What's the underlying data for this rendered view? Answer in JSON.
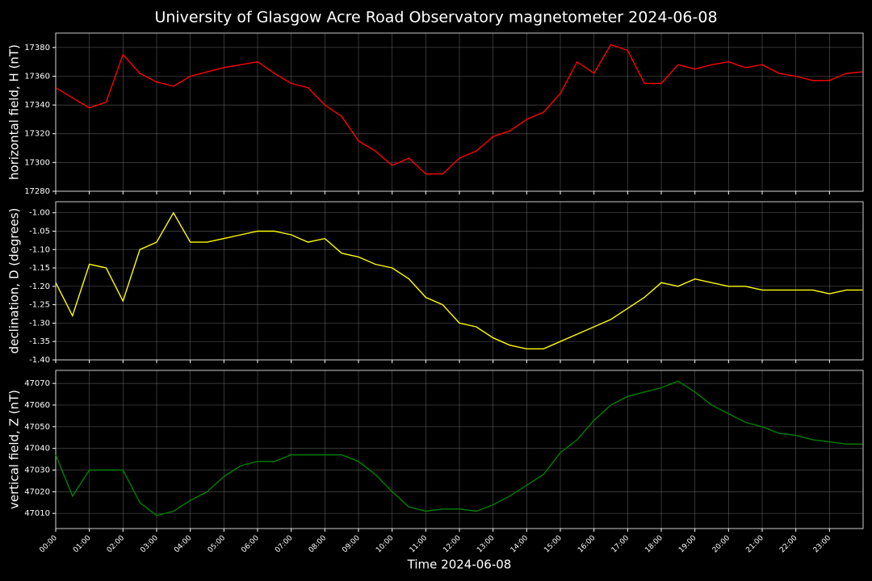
{
  "chart_data": [
    {
      "type": "line",
      "title": "University of Glasgow Acre Road Observatory magnetometer 2024-06-08",
      "ylabel": "horizontal field, H (nT)",
      "color": "#ff0000",
      "grid": true,
      "x": [
        "00:00",
        "00:30",
        "01:00",
        "01:30",
        "02:00",
        "02:30",
        "03:00",
        "03:30",
        "04:00",
        "04:30",
        "05:00",
        "05:30",
        "06:00",
        "06:30",
        "07:00",
        "07:30",
        "08:00",
        "08:30",
        "09:00",
        "09:30",
        "10:00",
        "10:30",
        "11:00",
        "11:30",
        "12:00",
        "12:30",
        "13:00",
        "13:30",
        "14:00",
        "14:30",
        "15:00",
        "15:30",
        "16:00",
        "16:30",
        "17:00",
        "17:30",
        "18:00",
        "18:30",
        "19:00",
        "19:30",
        "20:00",
        "20:30",
        "21:00",
        "21:30",
        "22:00",
        "22:30",
        "23:00",
        "23:30",
        "23:59"
      ],
      "values": [
        17352,
        17345,
        17338,
        17342,
        17375,
        17362,
        17356,
        17353,
        17360,
        17363,
        17366,
        17368,
        17370,
        17362,
        17355,
        17352,
        17340,
        17332,
        17315,
        17308,
        17298,
        17303,
        17292,
        17292,
        17303,
        17308,
        17318,
        17322,
        17330,
        17335,
        17348,
        17370,
        17362,
        17382,
        17378,
        17355,
        17355,
        17368,
        17365,
        17368,
        17370,
        17366,
        17368,
        17362,
        17360,
        17357,
        17357,
        17362,
        17363
      ],
      "xlim": [
        "00:00",
        "24:00"
      ],
      "ylim": [
        17280,
        17390
      ],
      "yticks": [
        17280,
        17300,
        17320,
        17340,
        17360,
        17380
      ]
    },
    {
      "type": "line",
      "ylabel": "declination, D (degrees)",
      "color": "#ffff00",
      "grid": true,
      "x": [
        "00:00",
        "00:30",
        "01:00",
        "01:30",
        "02:00",
        "02:30",
        "03:00",
        "03:30",
        "04:00",
        "04:30",
        "05:00",
        "05:30",
        "06:00",
        "06:30",
        "07:00",
        "07:30",
        "08:00",
        "08:30",
        "09:00",
        "09:30",
        "10:00",
        "10:30",
        "11:00",
        "11:30",
        "12:00",
        "12:30",
        "13:00",
        "13:30",
        "14:00",
        "14:30",
        "15:00",
        "15:30",
        "16:00",
        "16:30",
        "17:00",
        "17:30",
        "18:00",
        "18:30",
        "19:00",
        "19:30",
        "20:00",
        "20:30",
        "21:00",
        "21:30",
        "22:00",
        "22:30",
        "23:00",
        "23:30",
        "23:59"
      ],
      "values": [
        -1.19,
        -1.28,
        -1.14,
        -1.15,
        -1.24,
        -1.1,
        -1.08,
        -1.0,
        -1.08,
        -1.08,
        -1.07,
        -1.06,
        -1.05,
        -1.05,
        -1.06,
        -1.08,
        -1.07,
        -1.11,
        -1.12,
        -1.14,
        -1.15,
        -1.18,
        -1.23,
        -1.25,
        -1.3,
        -1.31,
        -1.34,
        -1.36,
        -1.37,
        -1.37,
        -1.35,
        -1.33,
        -1.31,
        -1.29,
        -1.26,
        -1.23,
        -1.19,
        -1.2,
        -1.18,
        -1.19,
        -1.2,
        -1.2,
        -1.21,
        -1.21,
        -1.21,
        -1.21,
        -1.22,
        -1.21,
        -1.21
      ],
      "xlim": [
        "00:00",
        "24:00"
      ],
      "ylim": [
        -1.4,
        -0.97
      ],
      "yticks": [
        {
          "value": -1.4,
          "label": "-1.40"
        },
        {
          "value": -1.35,
          "label": "-1.35"
        },
        {
          "value": -1.3,
          "label": "-1.30"
        },
        {
          "value": -1.25,
          "label": "-1.25"
        },
        {
          "value": -1.2,
          "label": "-1.20"
        },
        {
          "value": -1.15,
          "label": "-1.15"
        },
        {
          "value": -1.1,
          "label": "-1.10"
        },
        {
          "value": -1.05,
          "label": "-1.05"
        },
        {
          "value": -1.0,
          "label": "-1.00"
        }
      ]
    },
    {
      "type": "line",
      "ylabel": "vertical field, Z (nT)",
      "xlabel": "Time 2024-06-08",
      "color": "#008000",
      "grid": true,
      "x": [
        "00:00",
        "00:30",
        "01:00",
        "01:30",
        "02:00",
        "02:30",
        "03:00",
        "03:30",
        "04:00",
        "04:30",
        "05:00",
        "05:30",
        "06:00",
        "06:30",
        "07:00",
        "07:30",
        "08:00",
        "08:30",
        "09:00",
        "09:30",
        "10:00",
        "10:30",
        "11:00",
        "11:30",
        "12:00",
        "12:30",
        "13:00",
        "13:30",
        "14:00",
        "14:30",
        "15:00",
        "15:30",
        "16:00",
        "16:30",
        "17:00",
        "17:30",
        "18:00",
        "18:30",
        "19:00",
        "19:30",
        "20:00",
        "20:30",
        "21:00",
        "21:30",
        "22:00",
        "22:30",
        "23:00",
        "23:30",
        "23:59"
      ],
      "values": [
        47037,
        47018,
        47030,
        47030,
        47030,
        47015,
        47009,
        47011,
        47016,
        47020,
        47027,
        47032,
        47034,
        47034,
        47037,
        47037,
        47037,
        47037,
        47034,
        47028,
        47020,
        47013,
        47011,
        47012,
        47012,
        47011,
        47014,
        47018,
        47023,
        47028,
        47038,
        47044,
        47053,
        47060,
        47064,
        47066,
        47068,
        47071,
        47066,
        47060,
        47056,
        47052,
        47050,
        47047,
        47046,
        47044,
        47043,
        47042,
        47042
      ],
      "xlim": [
        "00:00",
        "24:00"
      ],
      "ylim": [
        47003,
        47076
      ],
      "yticks": [
        47010,
        47020,
        47030,
        47040,
        47050,
        47060,
        47070
      ],
      "xticks": [
        "00:00",
        "01:00",
        "02:00",
        "03:00",
        "04:00",
        "05:00",
        "06:00",
        "07:00",
        "08:00",
        "09:00",
        "10:00",
        "11:00",
        "12:00",
        "13:00",
        "14:00",
        "15:00",
        "16:00",
        "17:00",
        "18:00",
        "19:00",
        "20:00",
        "21:00",
        "22:00",
        "23:00"
      ]
    }
  ]
}
